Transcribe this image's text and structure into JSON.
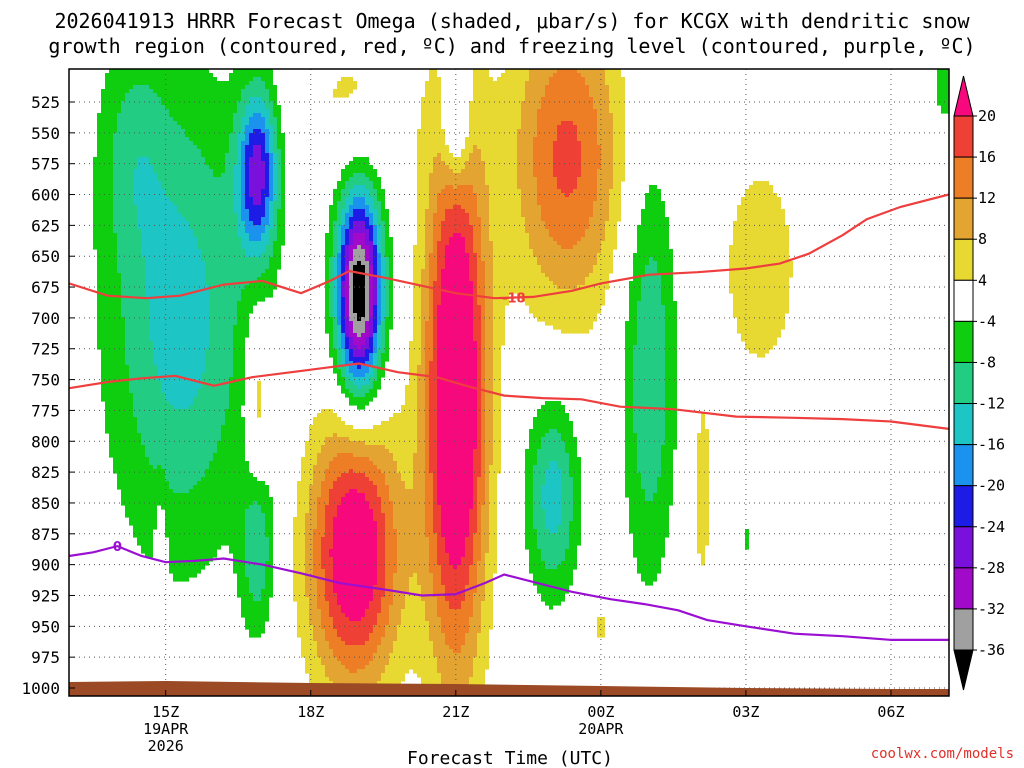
{
  "chart_data": {
    "type": "heatmap",
    "title_line1": "2026041913 HRRR Forecast Omega (shaded, μbar/s) for KCGX with dendritic snow",
    "title_line2": "growth region (contoured, red, ºC) and freezing level (contoured, purple, ºC)",
    "xlabel": "Forecast Time (UTC)",
    "ylabel": "",
    "x_range_hours": [
      13.0,
      31.2
    ],
    "y_range_hpa": [
      1010,
      495
    ],
    "yticks": [
      525,
      550,
      575,
      600,
      625,
      650,
      675,
      700,
      725,
      750,
      775,
      800,
      825,
      850,
      875,
      900,
      925,
      950,
      975,
      1000
    ],
    "xticks": [
      {
        "h": 15,
        "label": "15Z",
        "sub1": "19APR",
        "sub2": "2026"
      },
      {
        "h": 18,
        "label": "18Z",
        "sub1": "",
        "sub2": ""
      },
      {
        "h": 21,
        "label": "21Z",
        "sub1": "",
        "sub2": ""
      },
      {
        "h": 24,
        "label": "00Z",
        "sub1": "20APR",
        "sub2": ""
      },
      {
        "h": 27,
        "label": "03Z",
        "sub1": "",
        "sub2": ""
      },
      {
        "h": 30,
        "label": "06Z",
        "sub1": "",
        "sub2": ""
      }
    ],
    "colorbar": {
      "levels": [
        20,
        16,
        12,
        8,
        4,
        -4,
        -8,
        -12,
        -16,
        -20,
        -24,
        -28,
        -32,
        -36
      ],
      "colors": [
        "#f7087c",
        "#ee4035",
        "#ee7e25",
        "#e4a432",
        "#e8d832",
        "#ffffff",
        "#0fce0f",
        "#22cd83",
        "#1dc5c5",
        "#1b92ee",
        "#1c1ce6",
        "#7a10dc",
        "#a00ac8",
        "#a0a0a0",
        "#000000"
      ]
    },
    "omega_features": [
      {
        "name": "strong-ascent-core",
        "cx": 19.0,
        "cy": 680,
        "rx": 0.48,
        "ry": 85,
        "peak": -40
      },
      {
        "name": "ascent-upper-1650z",
        "cx": 16.9,
        "cy": 582,
        "rx": 0.42,
        "ry": 68,
        "peak": -24
      },
      {
        "name": "ascent-upper-2100z",
        "cx": 21.0,
        "cy": 540,
        "rx": 0.28,
        "ry": 50,
        "peak": -14
      },
      {
        "name": "ascent-broad-1500z",
        "cx": 15.3,
        "cy": 700,
        "rx": 1.5,
        "ry": 190,
        "peak": -14
      },
      {
        "name": "ascent-top-1400z",
        "cx": 14.3,
        "cy": 560,
        "rx": 0.7,
        "ry": 90,
        "peak": -6
      },
      {
        "name": "ascent-low-2300z",
        "cx": 23.0,
        "cy": 845,
        "rx": 0.55,
        "ry": 80,
        "peak": -14
      },
      {
        "name": "ascent-low-0100z",
        "cx": 25.0,
        "cy": 740,
        "rx": 0.55,
        "ry": 170,
        "peak": -12
      },
      {
        "name": "ascent-low-1700z",
        "cx": 16.9,
        "cy": 885,
        "rx": 0.35,
        "ry": 70,
        "peak": -11
      },
      {
        "name": "ascent-small-0300z",
        "cx": 27.0,
        "cy": 880,
        "rx": 0.12,
        "ry": 18,
        "peak": -5
      },
      {
        "name": "ascent-right-edge",
        "cx": 31.1,
        "cy": 510,
        "rx": 0.25,
        "ry": 40,
        "peak": -6
      },
      {
        "name": "descent-column-2130z",
        "cx": 21.0,
        "cy": 765,
        "rx": 0.65,
        "ry": 215,
        "peak": 30
      },
      {
        "name": "descent-low-1900z",
        "cx": 18.9,
        "cy": 890,
        "rx": 0.95,
        "ry": 110,
        "peak": 26
      },
      {
        "name": "descent-upper-2315z",
        "cx": 23.3,
        "cy": 570,
        "rx": 1.15,
        "ry": 125,
        "peak": 17
      },
      {
        "name": "descent-mid-1700z",
        "cx": 16.9,
        "cy": 770,
        "rx": 0.25,
        "ry": 75,
        "peak": 9
      },
      {
        "name": "descent-upper-0315z",
        "cx": 27.3,
        "cy": 660,
        "rx": 0.85,
        "ry": 95,
        "peak": 7
      },
      {
        "name": "descent-upper-1845z",
        "cx": 18.9,
        "cy": 525,
        "rx": 1.2,
        "ry": 65,
        "peak": 5
      },
      {
        "name": "descent-low-0200z",
        "cx": 26.1,
        "cy": 840,
        "rx": 0.25,
        "ry": 110,
        "peak": 5.5
      },
      {
        "name": "descent-small-1500z",
        "cx": 14.9,
        "cy": 885,
        "rx": 0.12,
        "ry": 45,
        "peak": 5
      },
      {
        "name": "descent-small-0000z",
        "cx": 24.0,
        "cy": 950,
        "rx": 0.14,
        "ry": 25,
        "peak": 5
      }
    ],
    "series": [
      {
        "name": "dgz-upper -18C",
        "color": "#ee3e3e",
        "label": "-18",
        "label_h": 22.2,
        "points": [
          [
            13.0,
            672
          ],
          [
            13.8,
            682
          ],
          [
            14.6,
            684
          ],
          [
            15.3,
            682
          ],
          [
            16.2,
            673
          ],
          [
            17.0,
            670
          ],
          [
            17.8,
            680
          ],
          [
            18.4,
            670
          ],
          [
            18.8,
            662
          ],
          [
            19.6,
            668
          ],
          [
            20.3,
            674
          ],
          [
            21.0,
            680
          ],
          [
            21.8,
            684
          ],
          [
            22.6,
            683
          ],
          [
            23.4,
            678
          ],
          [
            24.0,
            672
          ],
          [
            25.0,
            665
          ],
          [
            26.0,
            663
          ],
          [
            27.0,
            660
          ],
          [
            27.7,
            656
          ],
          [
            28.3,
            648
          ],
          [
            29.0,
            633
          ],
          [
            29.5,
            620
          ],
          [
            30.2,
            610
          ],
          [
            31.2,
            600
          ]
        ]
      },
      {
        "name": "dgz-lower -12C",
        "color": "#ee3e3e",
        "label": "",
        "label_h": 0,
        "points": [
          [
            13.0,
            757
          ],
          [
            13.8,
            752
          ],
          [
            14.5,
            749
          ],
          [
            15.2,
            747
          ],
          [
            16.0,
            755
          ],
          [
            16.8,
            748
          ],
          [
            17.6,
            744
          ],
          [
            18.4,
            740
          ],
          [
            19.0,
            737
          ],
          [
            19.8,
            744
          ],
          [
            20.6,
            748
          ],
          [
            21.3,
            756
          ],
          [
            22.0,
            763
          ],
          [
            22.8,
            765
          ],
          [
            23.6,
            766
          ],
          [
            24.4,
            772
          ],
          [
            25.5,
            774
          ],
          [
            26.8,
            780
          ],
          [
            28.0,
            781
          ],
          [
            29.0,
            782
          ],
          [
            30.0,
            784
          ],
          [
            31.2,
            790
          ]
        ]
      },
      {
        "name": "freezing level 0C",
        "color": "#9b0fd2",
        "label": "0",
        "label_h": 14.0,
        "points": [
          [
            13.0,
            893
          ],
          [
            13.5,
            890
          ],
          [
            14.0,
            885
          ],
          [
            14.5,
            893
          ],
          [
            15.0,
            898
          ],
          [
            15.6,
            897
          ],
          [
            16.2,
            895
          ],
          [
            17.0,
            900
          ],
          [
            17.8,
            907
          ],
          [
            18.6,
            915
          ],
          [
            19.5,
            920
          ],
          [
            20.3,
            925
          ],
          [
            21.0,
            924
          ],
          [
            21.6,
            915
          ],
          [
            22.0,
            908
          ],
          [
            22.6,
            914
          ],
          [
            23.4,
            922
          ],
          [
            24.2,
            928
          ],
          [
            24.9,
            932
          ],
          [
            25.6,
            937
          ],
          [
            26.2,
            945
          ],
          [
            27.0,
            950
          ],
          [
            28.0,
            956
          ],
          [
            29.0,
            958
          ],
          [
            30.0,
            961
          ],
          [
            31.2,
            961
          ]
        ]
      }
    ]
  },
  "credit": "coolwx.com/models"
}
